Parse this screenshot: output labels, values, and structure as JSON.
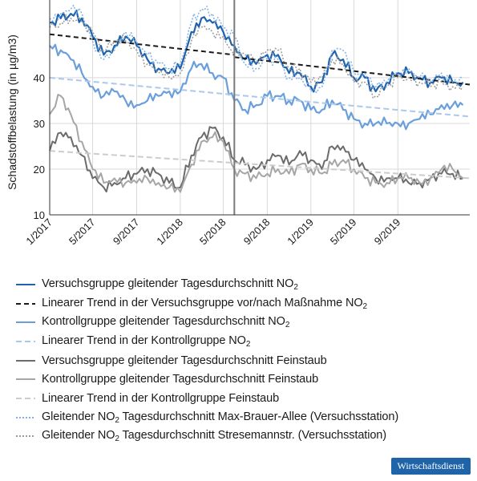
{
  "chart_data": {
    "type": "line",
    "ylabel": "Schadstoffbelastung (in µg/m3)",
    "ylim": [
      10,
      57
    ],
    "yticks": [
      10,
      20,
      30,
      40
    ],
    "x_range": [
      "2017-01-01",
      "2020-03-20"
    ],
    "xticks": [
      {
        "date": "2017-01-01",
        "label": "1/2017"
      },
      {
        "date": "2017-05-01",
        "label": "5/2017"
      },
      {
        "date": "2017-09-01",
        "label": "9/2017"
      },
      {
        "date": "2018-01-01",
        "label": "1/2018"
      },
      {
        "date": "2018-05-01",
        "label": "5/2018"
      },
      {
        "date": "2018-09-01",
        "label": "9/2018"
      },
      {
        "date": "2019-01-01",
        "label": "1/2019"
      },
      {
        "date": "2019-05-01",
        "label": "5/2019"
      },
      {
        "date": "2019-09-01",
        "label": "9/2019"
      }
    ],
    "grid": true,
    "event_line_date": "2018-06-01",
    "x": [
      "2017-01-01",
      "2017-02-01",
      "2017-03-01",
      "2017-04-01",
      "2017-05-01",
      "2017-06-01",
      "2017-07-01",
      "2017-08-01",
      "2017-09-01",
      "2017-10-01",
      "2017-11-01",
      "2017-12-01",
      "2018-01-01",
      "2018-02-01",
      "2018-03-01",
      "2018-04-01",
      "2018-05-01",
      "2018-06-01",
      "2018-07-01",
      "2018-08-01",
      "2018-09-01",
      "2018-10-01",
      "2018-11-01",
      "2018-12-01",
      "2019-01-01",
      "2019-02-01",
      "2019-03-01",
      "2019-04-01",
      "2019-05-01",
      "2019-06-01",
      "2019-07-01",
      "2019-08-01",
      "2019-09-01",
      "2019-10-01",
      "2019-11-01",
      "2019-12-01",
      "2020-01-01",
      "2020-02-01",
      "2020-03-01"
    ],
    "series": [
      {
        "name": "Versuchsgruppe gleitender Tagesdurchschnitt NO₂",
        "color": "#1e63ae",
        "width": 2.2,
        "dash": "",
        "values": [
          52,
          53,
          54,
          53,
          49,
          45,
          47,
          49,
          47,
          44,
          42,
          41,
          42,
          50,
          53,
          52,
          50,
          47,
          44,
          43,
          45,
          45,
          41,
          41,
          38,
          39,
          45,
          44,
          40,
          40,
          37,
          39,
          41,
          41,
          40,
          39,
          40,
          39,
          39
        ]
      },
      {
        "name": "Linearer Trend in der Versuchsgruppe vor/nach Maßnahme NO₂",
        "color": "#1a1a1a",
        "width": 2,
        "dash": "6,4",
        "segments": [
          {
            "x": [
              "2017-01-01",
              "2018-06-01"
            ],
            "y": [
              49.5,
              45.0
            ]
          },
          {
            "x": [
              "2018-06-01",
              "2020-03-20"
            ],
            "y": [
              44.5,
              38.5
            ]
          }
        ]
      },
      {
        "name": "Kontrollgruppe gleitender Tagesdurchschnitt NO₂",
        "color": "#6a9fdc",
        "width": 2.2,
        "dash": "",
        "values": [
          47,
          46,
          44,
          41,
          38,
          36,
          37,
          35,
          34,
          35,
          36,
          37,
          37,
          42,
          43,
          41,
          40,
          35,
          33,
          34,
          36,
          36,
          35,
          35,
          33,
          33,
          35,
          33,
          31,
          30,
          30,
          30,
          30,
          30,
          31,
          32,
          34,
          34,
          34
        ]
      },
      {
        "name": "Linearer Trend in der Kontrollgruppe NO₂",
        "color": "#a9c8ec",
        "width": 2,
        "dash": "7,4",
        "segments": [
          {
            "x": [
              "2017-01-01",
              "2020-03-20"
            ],
            "y": [
              40.0,
              31.5
            ]
          }
        ]
      },
      {
        "name": "Versuchsgruppe gleitender Tagesdurchschnitt Feinstaub",
        "color": "#6b6b6b",
        "width": 2,
        "dash": "",
        "values": [
          24,
          28,
          27,
          23,
          18,
          16,
          17,
          18,
          19,
          20,
          19,
          17,
          16,
          23,
          27,
          29,
          27,
          22,
          21,
          20,
          22,
          23,
          21,
          24,
          22,
          20,
          25,
          25,
          22,
          20,
          18,
          18,
          18,
          17,
          17,
          18,
          19,
          19,
          18
        ]
      },
      {
        "name": "Kontrollgruppe gleitender Tagesdurchschnitt Feinstaub",
        "color": "#a6a6a6",
        "width": 2,
        "dash": "",
        "values": [
          32,
          36,
          32,
          26,
          20,
          17,
          18,
          17,
          17,
          18,
          17,
          16,
          15,
          21,
          26,
          27,
          26,
          20,
          19,
          18,
          19,
          20,
          19,
          21,
          20,
          19,
          21,
          22,
          20,
          18,
          17,
          17,
          18,
          18,
          17,
          18,
          20,
          20,
          18
        ]
      },
      {
        "name": "Linearer Trend in der Kontrollgruppe Feinstaub",
        "color": "#cccccc",
        "width": 2,
        "dash": "7,4",
        "segments": [
          {
            "x": [
              "2017-01-01",
              "2020-03-20"
            ],
            "y": [
              24.0,
              18.0
            ]
          }
        ]
      },
      {
        "name": "Gleitender NO₂ Tagesdurchschnitt Max-Brauer-Allee (Versuchsstation)",
        "color": "#7fb0e6",
        "width": 1.5,
        "dash": "2,2",
        "values": [
          53,
          54,
          55,
          54,
          48,
          44,
          46,
          50,
          48,
          45,
          43,
          42,
          43,
          52,
          55,
          54,
          51,
          49,
          43,
          42,
          44,
          44,
          40,
          40,
          37,
          38,
          46,
          46,
          41,
          41,
          38,
          39,
          41,
          42,
          40,
          39,
          41,
          39,
          40
        ]
      },
      {
        "name": "Gleitender NO₂ Tagesdurchschnitt Stresemannstr. (Versuchsstation)",
        "color": "#9a9a9a",
        "width": 1.5,
        "dash": "2,2",
        "values": [
          51,
          52,
          53,
          52,
          50,
          46,
          48,
          48,
          46,
          43,
          41,
          40,
          41,
          48,
          51,
          50,
          49,
          45,
          45,
          44,
          46,
          46,
          42,
          42,
          39,
          40,
          44,
          43,
          39,
          39,
          36,
          38,
          40,
          40,
          39,
          38,
          39,
          38,
          38
        ]
      }
    ]
  },
  "legend": [
    {
      "pre": "Versuchsgruppe gleitender Tagesdurchschnitt NO",
      "sub": "2",
      "post": ""
    },
    {
      "pre": "Linearer Trend in der Versuchsgruppe vor/nach Maßnahme NO",
      "sub": "2",
      "post": ""
    },
    {
      "pre": "Kontrollgruppe gleitender Tagesdurchschnitt NO",
      "sub": "2",
      "post": ""
    },
    {
      "pre": "Linearer Trend in der Kontrollgruppe NO",
      "sub": "2",
      "post": ""
    },
    {
      "pre": "Versuchsgruppe gleitender Tagesdurchschnitt Feinstaub",
      "sub": "",
      "post": ""
    },
    {
      "pre": "Kontrollgruppe gleitender Tagesdurchschnitt Feinstaub",
      "sub": "",
      "post": ""
    },
    {
      "pre": "Linearer Trend in der Kontrollgruppe Feinstaub",
      "sub": "",
      "post": ""
    },
    {
      "pre": "Gleitender NO",
      "sub": "2",
      "post": " Tagesdurchschnitt Max-Brauer-Allee (Versuchsstation)"
    },
    {
      "pre": "Gleitender NO",
      "sub": "2",
      "post": " Tagesdurchschnitt Stresemannstr. (Versuchsstation)"
    }
  ],
  "brand": "Wirtschaftsdienst"
}
